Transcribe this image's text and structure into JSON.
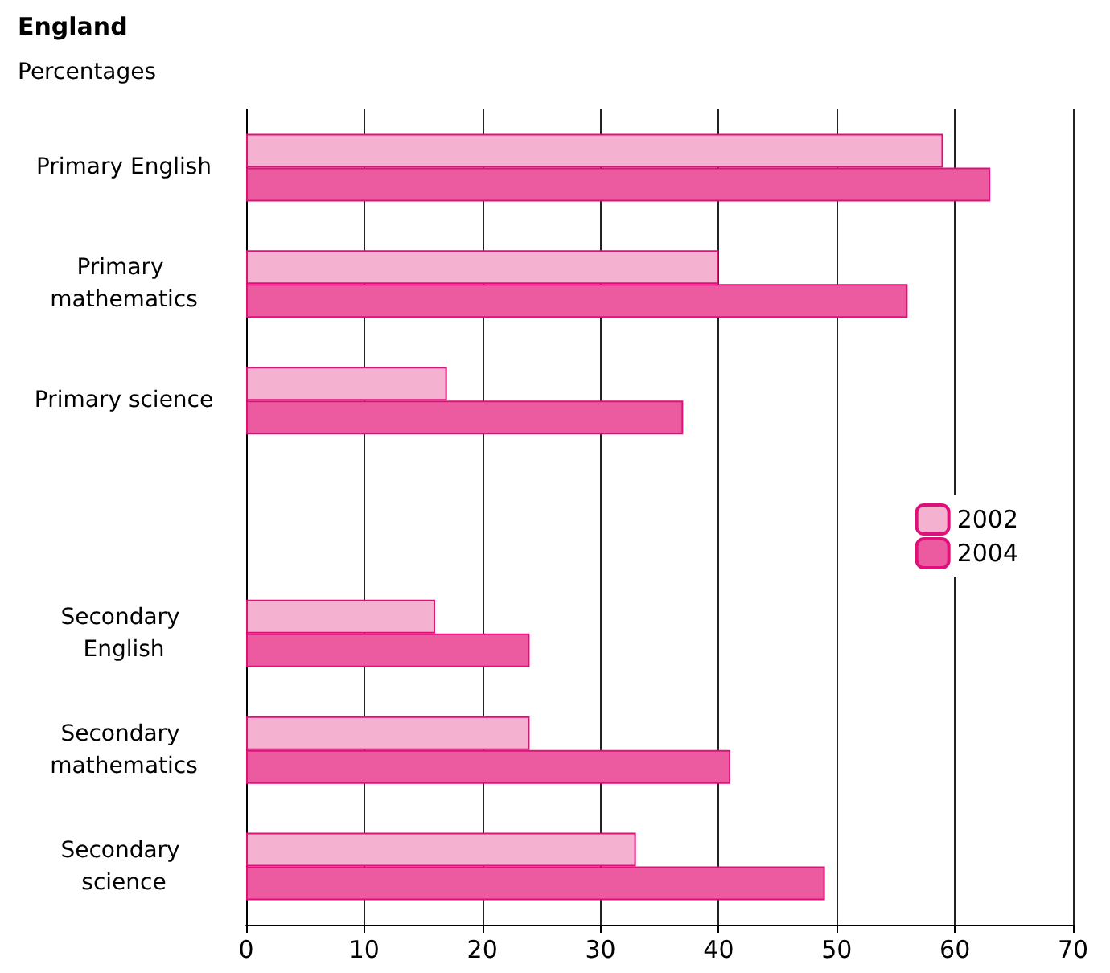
{
  "chart_data": {
    "type": "bar",
    "orientation": "horizontal",
    "title": "England",
    "subtitle": "Percentages",
    "categories": [
      "Primary English",
      "Primary mathematics",
      "Primary science",
      null,
      "Secondary English",
      "Secondary mathematics",
      "Secondary science"
    ],
    "series": [
      {
        "name": "2002",
        "color": "#f5b1d0",
        "values": [
          59,
          40,
          17,
          null,
          16,
          24,
          33
        ]
      },
      {
        "name": "2004",
        "color": "#ec5ba0",
        "values": [
          63,
          56,
          37,
          null,
          24,
          41,
          49
        ]
      }
    ],
    "xlim": [
      0,
      70
    ],
    "xticks": [
      0,
      10,
      20,
      30,
      40,
      50,
      60,
      70
    ],
    "grid": "x",
    "legend": "right"
  }
}
